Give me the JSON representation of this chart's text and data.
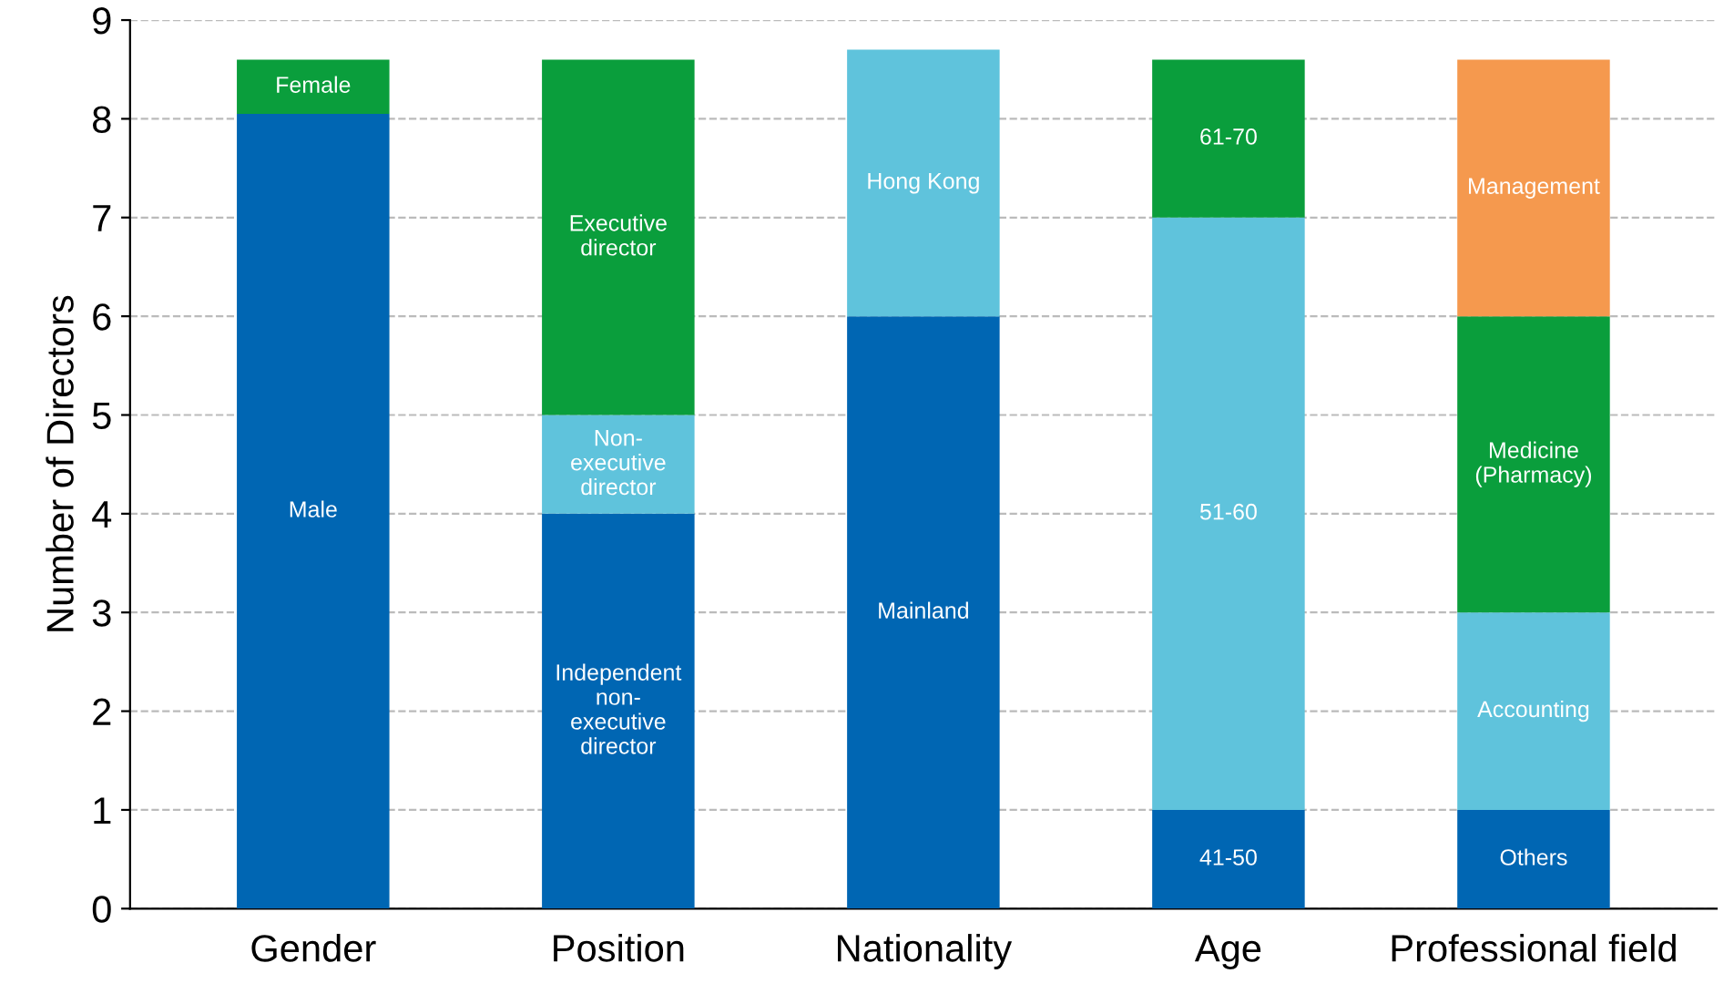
{
  "chart_data": {
    "type": "bar",
    "stacked": true,
    "ylabel": "Number of Directors",
    "categories": [
      "Gender",
      "Position",
      "Nationality",
      "Age",
      "Professional field"
    ],
    "series": [
      {
        "colors": [
          "#0066b3",
          "#0066b3",
          "#0066b3",
          "#0066b3",
          "#0066b3"
        ],
        "values": [
          8.05,
          4,
          6,
          1,
          1
        ],
        "value_labels": [
          "Male",
          "Independent\nnon-\nexecutive\ndirector",
          "Mainland",
          "41-50",
          "Others"
        ]
      },
      {
        "colors": [
          "#0a9e3c",
          "#5fc3dc",
          "#5fc3dc",
          "#5fc3dc",
          "#5fc3dc"
        ],
        "values": [
          0.55,
          1,
          2.7,
          6,
          2
        ],
        "value_labels": [
          "Female",
          "Non-\nexecutive\ndirector",
          "Hong Kong",
          "51-60",
          "Accounting"
        ]
      },
      {
        "colors": [
          null,
          "#0a9e3c",
          null,
          "#0a9e3c",
          "#0a9e3c"
        ],
        "values": [
          null,
          3.6,
          null,
          1.6,
          3
        ],
        "value_labels": [
          null,
          "Executive\ndirector",
          null,
          "61-70",
          "Medicine\n(Pharmacy)"
        ]
      },
      {
        "colors": [
          null,
          null,
          null,
          null,
          "#f5994e"
        ],
        "values": [
          null,
          null,
          null,
          null,
          2.6
        ],
        "value_labels": [
          null,
          null,
          null,
          null,
          "Management"
        ]
      }
    ],
    "ylim": [
      0,
      9
    ],
    "yticks": [
      0,
      1,
      2,
      3,
      4,
      5,
      6,
      7,
      8,
      9
    ],
    "grid": "y"
  }
}
